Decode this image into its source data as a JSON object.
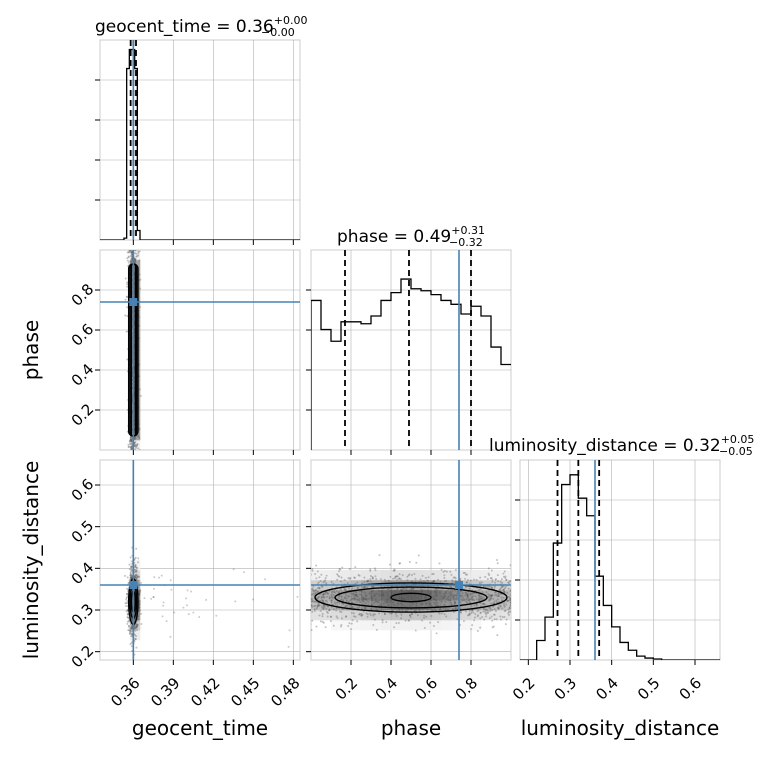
{
  "chart_data": {
    "type": "corner",
    "parameters": [
      "geocent_time",
      "phase",
      "luminosity_distance"
    ],
    "truths": {
      "geocent_time": 0.36,
      "phase": 0.74,
      "luminosity_distance": 0.36
    },
    "titles": {
      "geocent_time": {
        "name": "geocent_time",
        "median": "0.36",
        "plus": "+0.00",
        "minus": "−0.00"
      },
      "phase": {
        "name": "phase",
        "median": "0.49",
        "plus": "+0.31",
        "minus": "−0.32"
      },
      "luminosity_distance": {
        "name": "luminosity_distance",
        "median": "0.32",
        "plus": "+0.05",
        "minus": "−0.05"
      }
    },
    "ranges": {
      "geocent_time": [
        0.335,
        0.485
      ],
      "phase": [
        0.0,
        1.0
      ],
      "luminosity_distance": [
        0.18,
        0.66
      ]
    },
    "ticks": {
      "geocent_time": {
        "values": [
          0.36,
          0.39,
          0.42,
          0.45,
          0.48
        ],
        "labels": [
          "0.36",
          "0.39",
          "0.42",
          "0.45",
          "0.48"
        ]
      },
      "phase_x": {
        "values": [
          0.2,
          0.4,
          0.6,
          0.8
        ],
        "labels": [
          "0.2",
          "0.4",
          "0.6",
          "0.8"
        ]
      },
      "phase_y": {
        "values": [
          0.2,
          0.4,
          0.6,
          0.8
        ],
        "labels": [
          "0.2",
          "0.4",
          "0.6",
          "0.8"
        ]
      },
      "luminosity_distance": {
        "values": [
          0.2,
          0.3,
          0.4,
          0.5,
          0.6
        ],
        "labels": [
          "0.2",
          "0.3",
          "0.4",
          "0.5",
          "0.6"
        ]
      }
    },
    "quantiles": {
      "geocent_time": [
        0.358,
        0.36,
        0.362
      ],
      "phase": [
        0.17,
        0.49,
        0.8
      ],
      "luminosity_distance": [
        0.27,
        0.32,
        0.37
      ]
    },
    "hist_geocent_time": {
      "edges": [
        0.335,
        0.353,
        0.355,
        0.357,
        0.359,
        0.361,
        0.363,
        0.365,
        0.367,
        0.485
      ],
      "density": [
        0.0,
        0.01,
        0.9,
        1.0,
        1.0,
        0.9,
        0.05,
        0.0,
        0.0
      ]
    },
    "hist_phase": {
      "edges": [
        0.0,
        0.05,
        0.1,
        0.15,
        0.2,
        0.25,
        0.3,
        0.35,
        0.4,
        0.45,
        0.5,
        0.55,
        0.6,
        0.65,
        0.7,
        0.75,
        0.8,
        0.85,
        0.9,
        0.95,
        1.0
      ],
      "density": [
        0.77,
        0.62,
        0.56,
        0.66,
        0.66,
        0.65,
        0.69,
        0.77,
        0.81,
        0.88,
        0.83,
        0.82,
        0.8,
        0.77,
        0.75,
        0.7,
        0.74,
        0.69,
        0.53,
        0.44
      ]
    },
    "hist_luminosity_distance": {
      "edges": [
        0.18,
        0.22,
        0.24,
        0.26,
        0.28,
        0.3,
        0.32,
        0.34,
        0.36,
        0.38,
        0.4,
        0.42,
        0.44,
        0.46,
        0.48,
        0.5,
        0.52,
        0.54,
        0.56,
        0.58,
        0.66
      ],
      "density": [
        0.0,
        0.1,
        0.22,
        0.6,
        0.9,
        0.95,
        0.83,
        0.74,
        0.43,
        0.28,
        0.17,
        0.09,
        0.05,
        0.02,
        0.01,
        0.005,
        0.0,
        0.0,
        0.0,
        0.0
      ]
    },
    "scatter_phase_vs_geocent_time": {
      "center": [
        0.36,
        0.5
      ],
      "spread": [
        0.002,
        0.28
      ],
      "contour_widths": [
        0.0015,
        0.0025,
        0.0035
      ],
      "contour_y_range": [
        0.07,
        0.93
      ]
    },
    "scatter_luminosity_distance_vs_geocent_time": {
      "center": [
        0.36,
        0.32
      ],
      "spread": [
        0.002,
        0.04
      ],
      "contour_half_sizes": [
        [
          0.0015,
          0.025
        ],
        [
          0.0025,
          0.04
        ],
        [
          0.0035,
          0.055
        ]
      ]
    },
    "scatter_luminosity_distance_vs_phase": {
      "center": [
        0.5,
        0.33
      ],
      "spread": [
        0.29,
        0.03
      ],
      "contour_half_sizes": [
        [
          0.1,
          0.01
        ],
        [
          0.38,
          0.025
        ],
        [
          0.48,
          0.035
        ]
      ]
    },
    "colors": {
      "truth": "#4682b4",
      "hist": "#000000",
      "grid": "#b0b0b0",
      "quantile": "#000000",
      "points": "#555555"
    }
  }
}
